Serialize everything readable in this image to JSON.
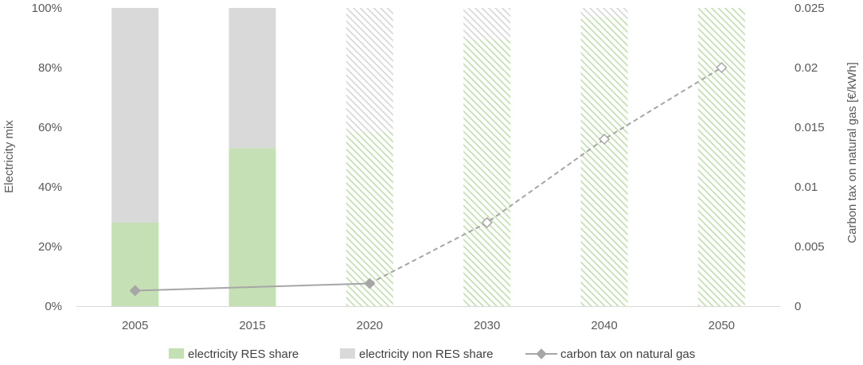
{
  "chart_data": {
    "type": "bar",
    "stacked": true,
    "categories": [
      "2005",
      "2015",
      "2020",
      "2030",
      "2040",
      "2050"
    ],
    "series": [
      {
        "name": "electricity RES share",
        "axis": "left",
        "values": [
          28,
          53,
          58.5,
          89.5,
          97,
          100
        ],
        "projected_from_index": 2,
        "color": "#c5e0b4"
      },
      {
        "name": "electricity non RES share",
        "axis": "left",
        "values": [
          72,
          47,
          41.5,
          10.5,
          3,
          0
        ],
        "projected_from_index": 2,
        "color": "#d9d9d9"
      },
      {
        "name": "carbon tax on natural gas",
        "type": "line",
        "axis": "right",
        "values": [
          0.0013,
          null,
          0.0019,
          0.007,
          0.014,
          0.02
        ],
        "x_positions": [
          0,
          1.2,
          2,
          3,
          4,
          5
        ],
        "x_values_note": null,
        "points": [
          {
            "category": "2005",
            "value": 0.0013
          },
          {
            "category": "2020",
            "value": 0.0019
          },
          {
            "category": "2030",
            "value": 0.007
          },
          {
            "category": "2040",
            "value": 0.014
          },
          {
            "category": "2050",
            "value": 0.02
          }
        ],
        "dashed_from_index": 2,
        "color": "#a6a6a6"
      }
    ],
    "ylabel": "Electricity mix",
    "ylabel_right": "Carbon tax on natural gas [€/kWh]",
    "ylim": [
      0,
      100
    ],
    "ylim_right": [
      0,
      0.025
    ],
    "yticks": [
      "0%",
      "20%",
      "40%",
      "60%",
      "80%",
      "100%"
    ],
    "yticks_right": [
      "0",
      "0.005",
      "0.01",
      "0.015",
      "0.02",
      "0.025"
    ],
    "grid": false,
    "legend_position": "bottom"
  }
}
